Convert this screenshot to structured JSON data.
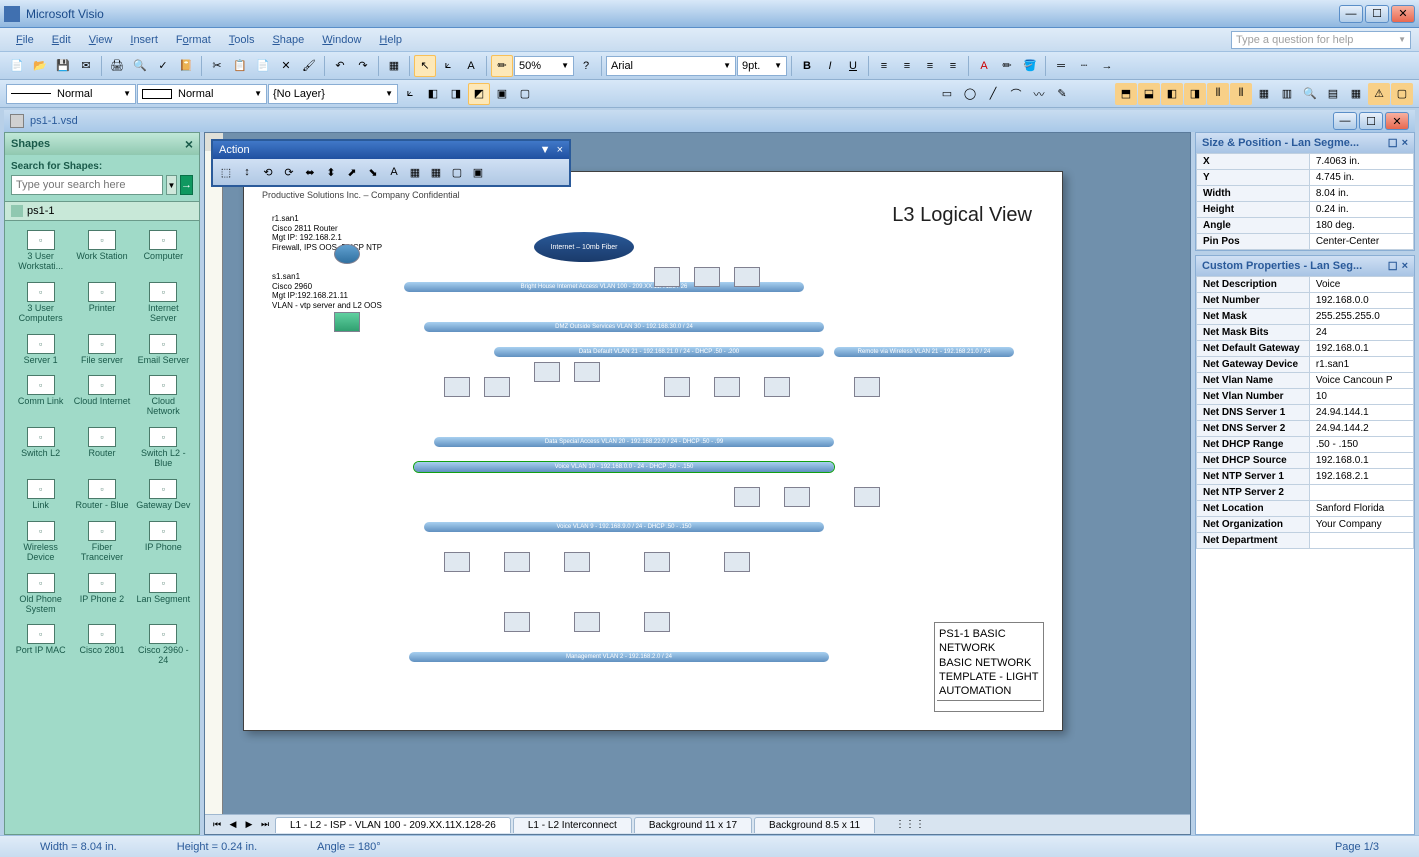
{
  "app": {
    "title": "Microsoft Visio"
  },
  "menus": [
    "File",
    "Edit",
    "View",
    "Insert",
    "Format",
    "Tools",
    "Shape",
    "Window",
    "Help"
  ],
  "helpbox_placeholder": "Type a question for help",
  "zoom": "50%",
  "font_name": "Arial",
  "font_size": "9pt.",
  "line_style1": "Normal",
  "line_style2": "Normal",
  "layer": "{No Layer}",
  "doc": {
    "filename": "ps1-1.vsd"
  },
  "shapes_panel": {
    "title": "Shapes",
    "search_label": "Search for Shapes:",
    "search_placeholder": "Type your search here",
    "tab": "ps1-1",
    "items": [
      "3 User Workstati...",
      "Work Station",
      "Computer",
      "3 User Computers",
      "Printer",
      "Internet Server",
      "Server 1",
      "File server",
      "Email Server",
      "Comm Link",
      "Cloud Internet",
      "Cloud Network",
      "Switch L2",
      "Router",
      "Switch L2 - Blue",
      "Link",
      "Router - Blue",
      "Gateway Dev",
      "Wireless Device",
      "Fiber Tranceiver",
      "IP Phone",
      "Old Phone System",
      "IP Phone 2",
      "Lan Segment",
      "Port IP MAC",
      "Cisco 2801",
      "Cisco 2960 - 24"
    ]
  },
  "action_toolbar": {
    "title": "Action"
  },
  "page_content": {
    "header": "Productive Solutions Inc. – Company Confidential",
    "title": "L3 Logical View",
    "router_info": "r1.san1\nCisco 2811 Router\nMgt IP: 192.168.2.1\nFirewall, IPS OOS, DHCP NTP",
    "switch_info": "s1.san1\nCisco 2960\nMgt IP:192.168.21.11\nVLAN - vtp server and L2 OOS",
    "internet": "Internet – 10mb Fiber",
    "segments": [
      "Bright House Internet Access VLAN 100 - 209.XX.11X.128 / 26",
      "DMZ Outside Services VLAN 30 - 192.168.30.0 / 24",
      "Data Default VLAN 21 - 192.168.21.0 / 24 - DHCP .50 - .200",
      "Remote via Wireless VLAN 21 - 192.168.21.0 / 24",
      "Data Special Access VLAN 20 - 192.168.22.0 / 24 - DHCP .50 - .99",
      "Voice VLAN 10 - 192.168.0.0 - 24 - DHCP .50 - .150",
      "Voice VLAN 9 - 192.168.9.0 / 24 - DHCP .50 - .150",
      "Management VLAN 2 - 192.168.2.0 / 24"
    ],
    "titleblock": "PS1-1 BASIC NETWORK\nBASIC NETWORK TEMPLATE - LIGHT AUTOMATION"
  },
  "sheet_tabs": [
    "L1 - L2 - ISP -  VLAN 100 - 209.XX.11X.128-26",
    "L1 - L2 Interconnect",
    "Background 11 x 17",
    "Background 8.5 x 11"
  ],
  "size_position": {
    "title": "Size & Position - Lan Segme...",
    "rows": [
      [
        "X",
        "7.4063 in."
      ],
      [
        "Y",
        "4.745 in."
      ],
      [
        "Width",
        "8.04 in."
      ],
      [
        "Height",
        "0.24 in."
      ],
      [
        "Angle",
        "180 deg."
      ],
      [
        "Pin Pos",
        "Center-Center"
      ]
    ]
  },
  "custom_props": {
    "title": "Custom Properties - Lan Seg...",
    "rows": [
      [
        "Net Description",
        "Voice"
      ],
      [
        "Net Number",
        "192.168.0.0"
      ],
      [
        "Net Mask",
        "255.255.255.0"
      ],
      [
        "Net Mask Bits",
        "24"
      ],
      [
        "Net Default Gateway",
        "192.168.0.1"
      ],
      [
        "Net Gateway Device",
        "r1.san1"
      ],
      [
        "Net Vlan Name",
        "Voice Cancoun P"
      ],
      [
        "Net Vlan Number",
        "10"
      ],
      [
        "Net DNS Server 1",
        "24.94.144.1"
      ],
      [
        "Net DNS Server 2",
        "24.94.144.2"
      ],
      [
        "Net DHCP Range",
        ".50 - .150"
      ],
      [
        "Net DHCP Source",
        "192.168.0.1"
      ],
      [
        "Net NTP Server 1",
        "192.168.2.1"
      ],
      [
        "Net NTP Server 2",
        ""
      ],
      [
        "Net Location",
        "Sanford Florida"
      ],
      [
        "Net Organization",
        "Your Company"
      ],
      [
        "Net Department",
        ""
      ]
    ]
  },
  "status": {
    "width": "Width = 8.04 in.",
    "height": "Height = 0.24 in.",
    "angle": "Angle = 180°",
    "page": "Page 1/3"
  },
  "colors": {
    "titlebar_grad1": "#d8e8f8",
    "titlebar_grad2": "#90b8e0",
    "toolbar_grad1": "#d8e8f8",
    "toolbar_grad2": "#b8d2ec",
    "shapes_bg": "#a0dac8",
    "canvas_bg": "#7090ac",
    "segment_blue": "#6090c0",
    "action_header": "#2050a0"
  }
}
